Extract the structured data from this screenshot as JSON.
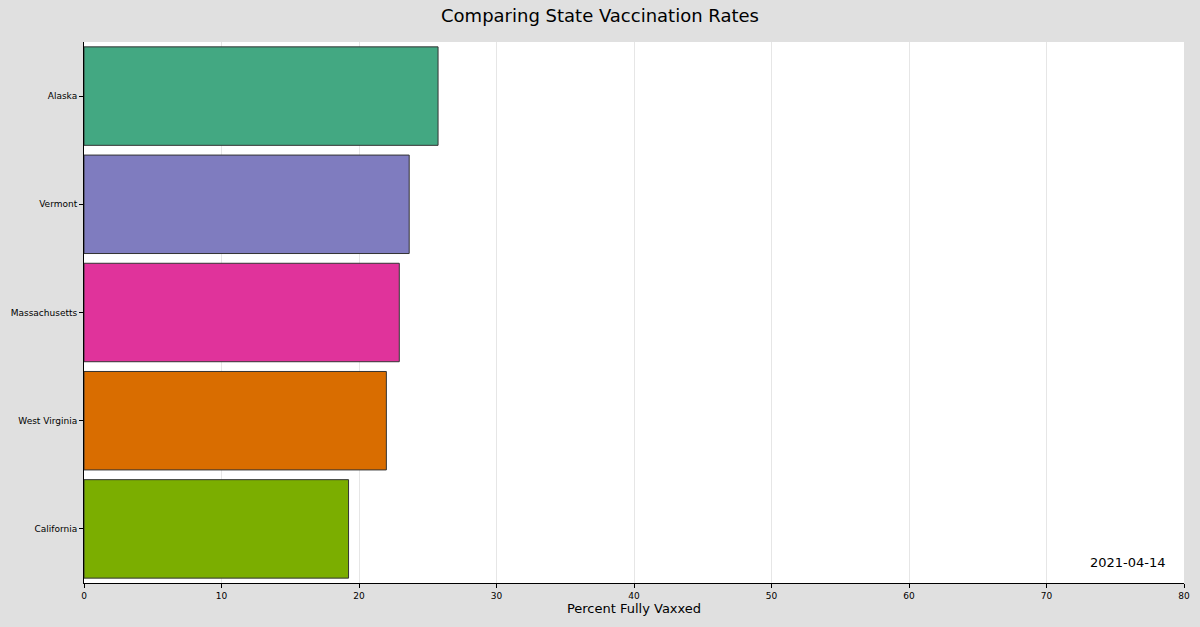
{
  "chart_data": {
    "type": "bar",
    "orientation": "horizontal",
    "title": "Comparing State Vaccination Rates",
    "x_label": "Percent Fully Vaxxed",
    "categories": [
      "Alaska",
      "Vermont",
      "Massachusetts",
      "West Virginia",
      "California"
    ],
    "values": [
      25.75,
      23.65,
      22.93,
      21.99,
      19.24
    ],
    "colors": [
      "#43a882",
      "#7f7cbf",
      "#e0339b",
      "#d96d00",
      "#7bae00"
    ],
    "xlim": [
      0,
      80
    ],
    "xticks": [
      0,
      10,
      20,
      30,
      40,
      50,
      60,
      70,
      80
    ],
    "grid": true,
    "annotation": "2021-04-14"
  }
}
